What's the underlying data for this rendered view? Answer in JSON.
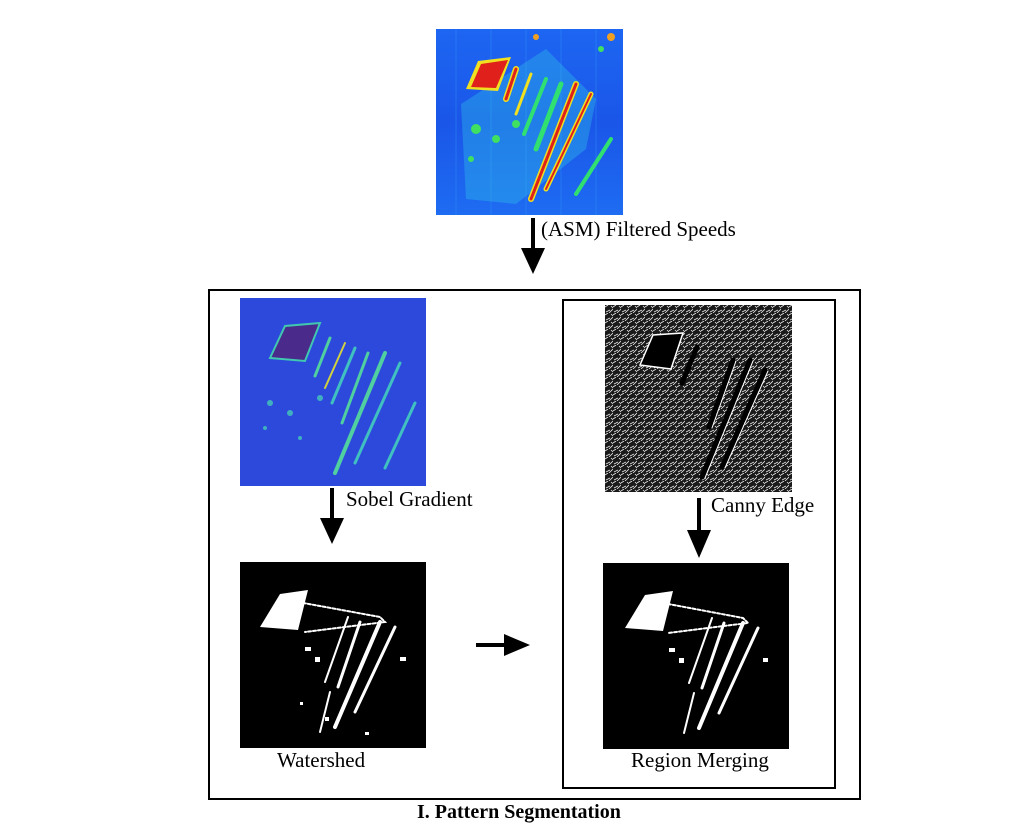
{
  "top_image": {
    "name": "speed heatmap"
  },
  "labels": {
    "filtered_speeds": "(ASM) Filtered Speeds",
    "sobel": "Sobel Gradient",
    "canny": "Canny Edge",
    "watershed": "Watershed",
    "region_merging": "Region Merging"
  },
  "caption": "I. Pattern Segmentation",
  "colors": {
    "heatmap_bg": "#1a5cf0",
    "heatmap_hot": "#e0201a",
    "sobel_bg": "#2a47d8",
    "segment_bg": "#000000",
    "segment_fg": "#ffffff"
  }
}
